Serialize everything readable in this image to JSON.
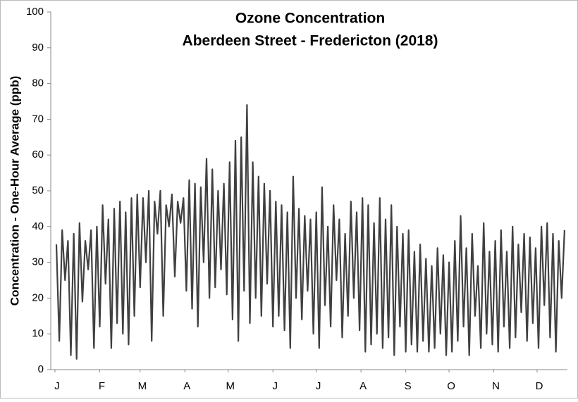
{
  "chart_data": {
    "type": "line",
    "title": "Ozone Concentration",
    "subtitle": "Aberdeen Street - Fredericton (2018)",
    "y_label": "Concentration - One-Hour Average (ppb)",
    "color": "#404040",
    "ylim": [
      0,
      100
    ],
    "yticks": [
      0,
      10,
      20,
      30,
      40,
      50,
      60,
      70,
      80,
      90,
      100
    ],
    "xlim": [
      0,
      355
    ],
    "xticks": [
      {
        "value": 0,
        "label": "J"
      },
      {
        "value": 31,
        "label": "F"
      },
      {
        "value": 59,
        "label": "M"
      },
      {
        "value": 90,
        "label": "A"
      },
      {
        "value": 120,
        "label": "M"
      },
      {
        "value": 151,
        "label": "J"
      },
      {
        "value": 181,
        "label": "J"
      },
      {
        "value": 212,
        "label": "A"
      },
      {
        "value": 243,
        "label": "S"
      },
      {
        "value": 273,
        "label": "O"
      },
      {
        "value": 304,
        "label": "N"
      },
      {
        "value": 334,
        "label": "D"
      }
    ],
    "grid": false,
    "x": [
      1,
      3,
      5,
      7,
      9,
      11,
      13,
      15,
      17,
      19,
      21,
      23,
      25,
      27,
      29,
      31,
      33,
      35,
      37,
      39,
      41,
      43,
      45,
      47,
      49,
      51,
      53,
      55,
      57,
      59,
      61,
      63,
      65,
      67,
      69,
      71,
      73,
      75,
      77,
      79,
      81,
      83,
      85,
      87,
      89,
      91,
      93,
      95,
      97,
      99,
      101,
      103,
      105,
      107,
      109,
      111,
      113,
      115,
      117,
      119,
      121,
      123,
      125,
      127,
      129,
      131,
      133,
      135,
      137,
      139,
      141,
      143,
      145,
      147,
      149,
      151,
      153,
      155,
      157,
      159,
      161,
      163,
      165,
      167,
      169,
      171,
      173,
      175,
      177,
      179,
      181,
      183,
      185,
      187,
      189,
      191,
      193,
      195,
      197,
      199,
      201,
      203,
      205,
      207,
      209,
      211,
      213,
      215,
      217,
      219,
      221,
      223,
      225,
      227,
      229,
      231,
      233,
      235,
      237,
      239,
      241,
      243,
      245,
      247,
      249,
      251,
      253,
      255,
      257,
      259,
      261,
      263,
      265,
      267,
      269,
      271,
      273,
      275,
      277,
      279,
      281,
      283,
      285,
      287,
      289,
      291,
      293,
      295,
      297,
      299,
      301,
      303,
      305,
      307,
      309,
      311,
      313,
      315,
      317,
      319,
      321,
      323,
      325,
      327,
      329,
      331,
      333,
      335,
      337,
      339,
      341,
      343,
      345,
      347,
      349,
      351,
      353
    ],
    "values": [
      35,
      8,
      39,
      25,
      36,
      4,
      38,
      3,
      41,
      19,
      36,
      28,
      39,
      6,
      40,
      12,
      46,
      24,
      42,
      6,
      45,
      13,
      47,
      10,
      44,
      7,
      48,
      15,
      49,
      23,
      48,
      30,
      50,
      8,
      47,
      38,
      50,
      15,
      46,
      40,
      49,
      26,
      47,
      41,
      48,
      22,
      53,
      17,
      52,
      12,
      51,
      30,
      59,
      20,
      56,
      23,
      50,
      28,
      52,
      21,
      58,
      14,
      64,
      8,
      65,
      22,
      74,
      13,
      58,
      20,
      54,
      15,
      52,
      24,
      50,
      12,
      47,
      15,
      46,
      11,
      44,
      6,
      54,
      20,
      45,
      14,
      43,
      22,
      42,
      10,
      44,
      6,
      51,
      18,
      40,
      12,
      46,
      25,
      42,
      9,
      38,
      15,
      47,
      20,
      44,
      11,
      48,
      5,
      46,
      7,
      41,
      10,
      48,
      6,
      42,
      9,
      46,
      4,
      40,
      12,
      38,
      5,
      39,
      7,
      33,
      5,
      35,
      8,
      31,
      5,
      29,
      6,
      34,
      10,
      32,
      4,
      30,
      5,
      36,
      8,
      43,
      12,
      34,
      4,
      38,
      15,
      29,
      6,
      41,
      10,
      33,
      7,
      36,
      5,
      39,
      12,
      33,
      6,
      40,
      9,
      35,
      16,
      38,
      8,
      37,
      13,
      34,
      6,
      40,
      18,
      41,
      9,
      38,
      5,
      36,
      20,
      39
    ]
  }
}
